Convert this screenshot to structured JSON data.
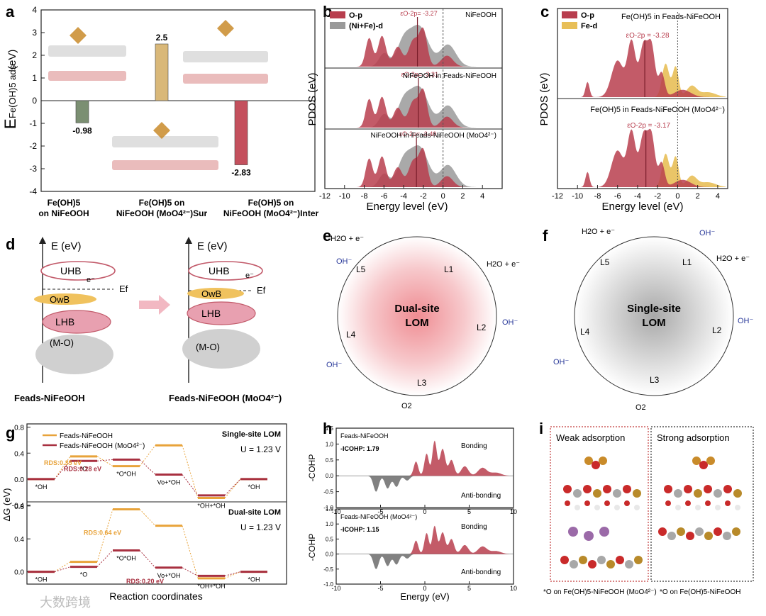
{
  "panel_letters": [
    "a",
    "b",
    "c",
    "d",
    "e",
    "f",
    "g",
    "h",
    "i"
  ],
  "chart_data": [
    {
      "id": "a",
      "type": "bar",
      "ylabel_main": "E",
      "ylabel_sub": "Fe(OH)5 ads",
      "ylabel_unit": "(eV)",
      "ylim": [
        -4,
        4
      ],
      "yticks": [
        "4",
        "3",
        "2",
        "1",
        "0",
        "-1",
        "-2",
        "-3",
        "-4"
      ],
      "categories": [
        [
          "Fe(OH)5",
          "on NiFeOOH"
        ],
        [
          "Fe(OH)5 on",
          "NiFeOOH (MoO4²⁻)Sur"
        ],
        [
          "Fe(OH)5 on",
          "NiFeOOH (MoO4²⁻)Inter"
        ]
      ],
      "values": [
        -0.98,
        2.5,
        -2.83
      ],
      "value_labels": [
        "-0.98",
        "2.5",
        "-2.83"
      ],
      "colors": [
        "#7b8f72",
        "#d9b879",
        "#c4505d"
      ]
    },
    {
      "id": "b",
      "type": "area",
      "xlabel": "Energy level (eV)",
      "ylabel": "PDOS (eV)",
      "xlim": [
        -12,
        6
      ],
      "xticks": [
        "-12",
        "-10",
        "-8",
        "-6",
        "-4",
        "-2",
        "0",
        "2",
        "4"
      ],
      "legend": [
        "O-p",
        "(Ni+Fe)-d"
      ],
      "colors": [
        "#b83e4e",
        "#9a9a9a"
      ],
      "subpanels": [
        {
          "title": "NiFeOOH",
          "center_label": "εO-2p= -3.27",
          "center": -2.6
        },
        {
          "title": "NiFeOOH in Feads-NiFeOOH",
          "center_label": "εO-2p= -3.31",
          "center": -2.5
        },
        {
          "title": "NiFeOOH in Feads-NiFeOOH (MoO4²⁻)",
          "center_label": "εO-2p= -3.40",
          "center": -2.7
        }
      ]
    },
    {
      "id": "c",
      "type": "area",
      "xlabel": "Energy level (eV)",
      "ylabel": "PDOS (eV)",
      "xlim": [
        -12,
        5
      ],
      "xticks": [
        "-12",
        "-10",
        "-8",
        "-6",
        "-4",
        "-2",
        "0",
        "2",
        "4"
      ],
      "legend": [
        "O-p",
        "Fe-d"
      ],
      "colors": [
        "#b83e4e",
        "#e8bf58"
      ],
      "subpanels": [
        {
          "title": "Fe(OH)5 in Feads-NiFeOOH",
          "center_label": "εO-2p = -3.28",
          "center": -3.28
        },
        {
          "title": "Fe(OH)5 in Feads-NiFeOOH (MoO4²⁻)",
          "center_label": "εO-2p = -3.17",
          "center": -3.17
        }
      ]
    },
    {
      "id": "g",
      "type": "line",
      "xlabel": "Reaction coordinates",
      "ylabel": "ΔG (eV)",
      "legend": [
        "Feads-NiFeOOH",
        "Feads-NiFeOOH (MoO4²⁻)"
      ],
      "colors": [
        "#e8a33a",
        "#a83040"
      ],
      "subpanels": [
        {
          "title": "Single-site LOM",
          "u_label": "U = 1.23 V",
          "ylim": [
            -0.35,
            0.85
          ],
          "yticks": [
            "0.8",
            "0.4",
            "0.0",
            "-0.4"
          ],
          "steps": [
            "*OH",
            "*O",
            "*O*OH",
            "Vo+*OH",
            "*OH+*OH",
            "*OH"
          ],
          "series": [
            {
              "name": "Feads-NiFeOOH",
              "values": [
                0.0,
                0.35,
                0.2,
                0.52,
                -0.29,
                0.0
              ]
            },
            {
              "name": "Feads-NiFeOOH (MoO4²⁻)",
              "values": [
                0.0,
                0.28,
                0.3,
                0.07,
                -0.25,
                0.0
              ]
            }
          ],
          "rds_labels": [
            "RDS:0.35 eV",
            "RDS:0.28 eV"
          ]
        },
        {
          "title": "Dual-site LOM",
          "u_label": "U = 1.23 V",
          "ylim": [
            -0.15,
            0.85
          ],
          "yticks": [
            "0.8",
            "0.4",
            "0.0"
          ],
          "steps": [
            "*OH",
            "*O",
            "*O*OH",
            "Vo+*OH",
            "*OH+*OH",
            "*OH"
          ],
          "series": [
            {
              "name": "Feads-NiFeOOH",
              "values": [
                0.0,
                0.12,
                0.76,
                0.56,
                -0.08,
                0.0
              ]
            },
            {
              "name": "Feads-NiFeOOH (MoO4²⁻)",
              "values": [
                0.0,
                0.06,
                0.26,
                0.05,
                -0.05,
                0.0
              ]
            }
          ],
          "rds_labels": [
            "RDS:0.64 eV",
            "RDS:0.20 eV"
          ]
        }
      ]
    },
    {
      "id": "h",
      "type": "area",
      "xlabel": "Energy (eV)",
      "ylabel": "-COHP",
      "xlim": [
        -10,
        10
      ],
      "xticks": [
        "-10",
        "-5",
        "0",
        "5",
        "10"
      ],
      "colors": [
        "#b83e4e",
        "#6b6b6b"
      ],
      "subpanels": [
        {
          "title": "Feads-NiFeOOH",
          "icohp": "-ICOHP: 1.79",
          "ylim": [
            -1.0,
            1.5
          ],
          "yticks": [
            "1.5",
            "1.0",
            "0.5",
            "0.0",
            "-0.5",
            "-1.0"
          ],
          "bonding": "Bonding",
          "antibonding": "Anti-bonding"
        },
        {
          "title": "Feads-NiFeOOH (MoO4²⁻)",
          "icohp": "-ICOHP: 1.15",
          "ylim": [
            -1.0,
            1.5
          ],
          "yticks": [
            "1.5",
            "1.0",
            "0.5",
            "0.0",
            "-0.5",
            "-1.0"
          ],
          "bonding": "Bonding",
          "antibonding": "Anti-bonding"
        }
      ]
    }
  ],
  "panel_d": {
    "axis_label": "E (eV)",
    "bands": [
      "UHB",
      "OwB",
      "LHB",
      "(M-O)"
    ],
    "fermi": "Ef",
    "electron": "e⁻",
    "left_caption": "Feads-NiFeOOH",
    "right_caption": "Feads-NiFeOOH (MoO4²⁻)"
  },
  "panel_e": {
    "center_line1": "Dual-site",
    "center_line2": "LOM",
    "steps": [
      "L1",
      "L2",
      "L3",
      "L4",
      "L5"
    ],
    "h2o_top": "H2O + e⁻",
    "h2o_right": "H2O + e⁻",
    "oh": "OH⁻",
    "e": "e⁻",
    "o2": "O2"
  },
  "panel_f": {
    "center_line1": "Single-site",
    "center_line2": "LOM",
    "steps": [
      "L1",
      "L2",
      "L3",
      "L4",
      "L5"
    ],
    "h2o_top": "H2O + e⁻",
    "h2o_right": "H2O + e⁻",
    "oh": "OH⁻",
    "e": "e⁻",
    "o2": "O2"
  },
  "panel_i": {
    "left_title": "Weak adsorption",
    "right_title": "Strong adsorption",
    "left_caption": "*O on Fe(OH)5-NiFeOOH (MoO4²⁻)",
    "right_caption": "*O on Fe(OH)5-NiFeOOH"
  },
  "watermark": "大数跨境"
}
